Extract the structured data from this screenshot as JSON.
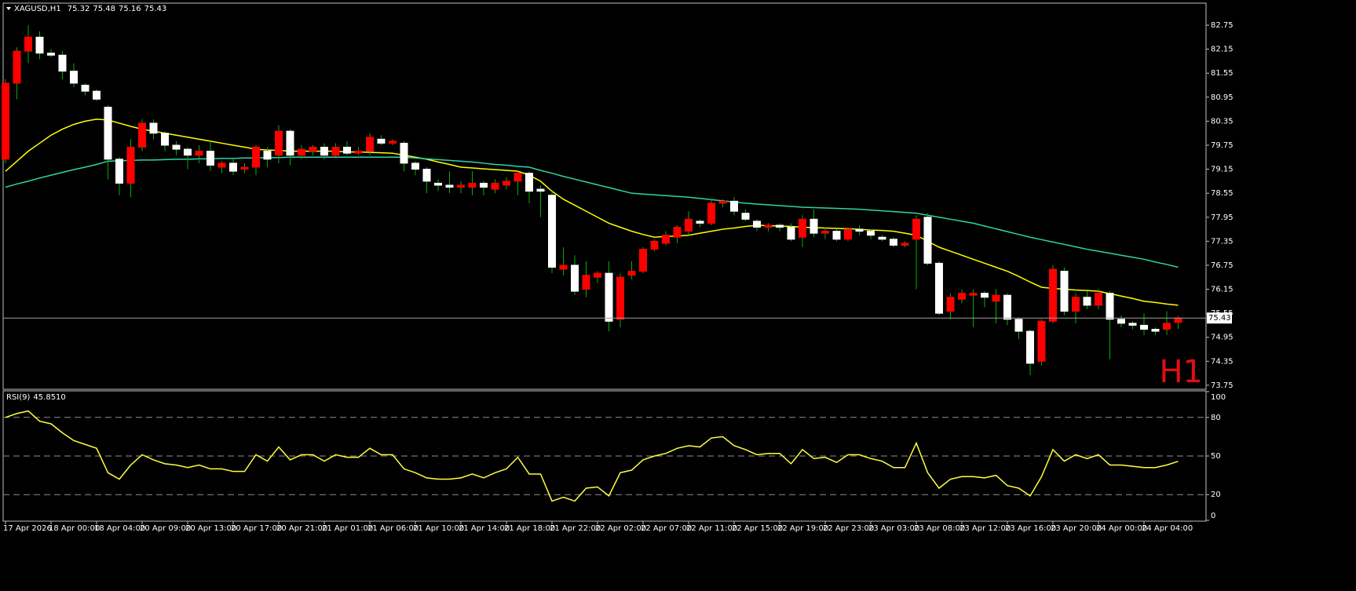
{
  "chart_data": {
    "type": "candlestick",
    "title": "XAGUSD,H1",
    "timeframe": "H1",
    "categories": [
      "17 Apr 2026",
      null,
      null,
      null,
      "18 Apr 00:00",
      null,
      null,
      null,
      "18 Apr 04:00",
      null,
      null,
      null,
      "20 Apr 09:00",
      null,
      null,
      null,
      "20 Apr 13:00",
      null,
      null,
      null,
      "20 Apr 17:00",
      null,
      null,
      null,
      "20 Apr 21:00",
      null,
      null,
      null,
      "21 Apr 01:00",
      null,
      null,
      null,
      "21 Apr 06:00",
      null,
      null,
      null,
      "21 Apr 10:00",
      null,
      null,
      null,
      "21 Apr 14:00",
      null,
      null,
      null,
      "21 Apr 18:00",
      null,
      null,
      null,
      "21 Apr 22:00",
      null,
      null,
      null,
      "22 Apr 02:00",
      null,
      null,
      null,
      "22 Apr 07:00",
      null,
      null,
      null,
      "22 Apr 11:00",
      null,
      null,
      null,
      "22 Apr 15:00",
      null,
      null,
      null,
      "22 Apr 19:00",
      null,
      null,
      null,
      "22 Apr 23:00",
      null,
      null,
      null,
      "23 Apr 03:00",
      null,
      null,
      null,
      "23 Apr 08:00",
      null,
      null,
      null,
      "23 Apr 12:00",
      null,
      null,
      null,
      "23 Apr 16:00",
      null,
      null,
      null,
      "23 Apr 20:00",
      null,
      null,
      null,
      "24 Apr 00:00",
      null,
      null,
      null,
      "24 Apr 04:00",
      null,
      null,
      null
    ],
    "open": [
      79.4,
      81.3,
      82.1,
      82.45,
      82.05,
      82.0,
      81.6,
      81.25,
      81.1,
      80.7,
      79.4,
      78.8,
      79.7,
      80.3,
      80.05,
      79.75,
      79.65,
      79.5,
      79.6,
      79.2,
      79.3,
      79.15,
      79.2,
      79.6,
      79.5,
      80.1,
      79.5,
      79.6,
      79.7,
      79.5,
      79.7,
      79.55,
      79.6,
      79.9,
      79.8,
      79.8,
      79.3,
      79.15,
      78.8,
      78.75,
      78.7,
      78.7,
      78.8,
      78.65,
      78.75,
      78.85,
      79.05,
      78.65,
      78.5,
      76.65,
      76.75,
      76.15,
      76.45,
      76.55,
      75.4,
      76.5,
      76.6,
      77.15,
      77.3,
      77.45,
      77.6,
      77.85,
      77.8,
      78.3,
      78.35,
      78.05,
      77.85,
      77.7,
      77.75,
      77.7,
      77.45,
      77.9,
      77.55,
      77.6,
      77.4,
      77.65,
      77.6,
      77.45,
      77.4,
      77.25,
      77.4,
      77.95,
      76.8,
      75.6,
      75.9,
      76.0,
      76.05,
      75.85,
      76.0,
      75.4,
      75.1,
      74.35,
      75.35,
      76.6,
      75.6,
      75.95,
      75.75,
      76.05,
      75.4,
      75.3,
      75.25,
      75.15,
      75.15,
      75.32
    ],
    "high": [
      81.4,
      82.2,
      82.75,
      82.6,
      82.15,
      82.1,
      81.8,
      81.3,
      81.15,
      80.75,
      79.45,
      79.9,
      80.4,
      80.4,
      80.1,
      79.85,
      79.7,
      79.75,
      79.85,
      79.35,
      79.4,
      79.3,
      79.75,
      79.7,
      80.25,
      80.15,
      79.75,
      79.75,
      79.8,
      79.8,
      79.85,
      79.7,
      80.05,
      80.0,
      79.9,
      79.85,
      79.35,
      79.2,
      78.9,
      79.1,
      78.85,
      79.1,
      78.85,
      78.9,
      78.95,
      79.1,
      79.1,
      78.75,
      78.6,
      77.2,
      77.0,
      76.85,
      76.6,
      76.85,
      76.55,
      76.85,
      77.2,
      77.4,
      77.6,
      77.75,
      78.1,
      77.9,
      78.4,
      78.4,
      78.45,
      78.15,
      77.9,
      77.8,
      77.8,
      77.8,
      78.0,
      78.15,
      77.7,
      77.65,
      77.7,
      77.75,
      77.65,
      77.5,
      77.45,
      77.35,
      78.0,
      78.05,
      76.85,
      76.05,
      76.15,
      76.15,
      76.1,
      76.15,
      76.05,
      75.45,
      75.15,
      75.4,
      76.75,
      76.7,
      76.05,
      76.1,
      76.15,
      76.1,
      75.5,
      75.35,
      75.55,
      75.2,
      75.6,
      75.48
    ],
    "low": [
      79.3,
      80.9,
      81.8,
      81.9,
      81.95,
      81.4,
      81.2,
      81.0,
      80.85,
      78.9,
      78.5,
      78.45,
      79.6,
      79.9,
      79.6,
      79.5,
      79.15,
      79.3,
      79.1,
      79.05,
      79.0,
      79.05,
      79.0,
      79.2,
      79.3,
      79.25,
      79.4,
      79.5,
      79.4,
      79.45,
      79.5,
      79.5,
      79.5,
      79.75,
      79.75,
      79.1,
      79.0,
      78.55,
      78.6,
      78.55,
      78.55,
      78.5,
      78.5,
      78.55,
      78.65,
      78.5,
      78.3,
      77.95,
      76.55,
      76.5,
      76.0,
      75.95,
      76.3,
      75.1,
      75.2,
      76.4,
      76.55,
      77.1,
      77.25,
      77.3,
      77.5,
      77.7,
      77.75,
      78.2,
      78.0,
      77.85,
      77.6,
      77.6,
      77.6,
      77.35,
      77.2,
      77.45,
      77.4,
      77.35,
      77.35,
      77.5,
      77.4,
      77.35,
      77.2,
      77.2,
      76.15,
      76.75,
      75.5,
      75.4,
      75.8,
      75.2,
      75.7,
      75.3,
      75.25,
      74.9,
      74.0,
      74.25,
      75.3,
      75.5,
      75.3,
      75.65,
      75.65,
      74.4,
      75.2,
      75.15,
      75.0,
      75.0,
      75.0,
      75.16
    ],
    "close": [
      81.3,
      82.1,
      82.45,
      82.05,
      82.0,
      81.6,
      81.3,
      81.1,
      80.9,
      79.4,
      78.8,
      79.7,
      80.3,
      80.05,
      79.75,
      79.65,
      79.5,
      79.6,
      79.25,
      79.3,
      79.1,
      79.2,
      79.7,
      79.4,
      80.1,
      79.5,
      79.65,
      79.7,
      79.5,
      79.7,
      79.55,
      79.6,
      79.95,
      79.8,
      79.85,
      79.3,
      79.15,
      78.85,
      78.75,
      78.7,
      78.75,
      78.8,
      78.7,
      78.8,
      78.85,
      79.05,
      78.6,
      78.6,
      76.7,
      76.75,
      76.1,
      76.5,
      76.55,
      75.35,
      76.45,
      76.6,
      77.15,
      77.35,
      77.5,
      77.7,
      77.9,
      77.8,
      78.3,
      78.35,
      78.1,
      77.9,
      77.7,
      77.75,
      77.7,
      77.4,
      77.9,
      77.55,
      77.6,
      77.4,
      77.65,
      77.6,
      77.5,
      77.4,
      77.25,
      77.3,
      77.9,
      76.8,
      75.55,
      75.95,
      76.05,
      76.05,
      75.95,
      76.0,
      75.4,
      75.1,
      74.3,
      75.35,
      76.65,
      75.6,
      75.95,
      75.75,
      76.05,
      75.4,
      75.3,
      75.25,
      75.15,
      75.1,
      75.3,
      75.43
    ],
    "up_color": "#ff0000",
    "down_color": "#ffffff",
    "wick_color": "#00b000",
    "ylim": [
      73.65,
      83.3
    ],
    "yticks": [
      82.75,
      82.15,
      81.55,
      80.95,
      80.35,
      79.75,
      79.15,
      78.55,
      77.95,
      77.35,
      76.75,
      76.15,
      75.55,
      74.95,
      74.35,
      73.75
    ],
    "current_price_line": true,
    "overlays": [
      {
        "color": "#ffff00",
        "values": [
          79.1,
          79.35,
          79.6,
          79.8,
          80.0,
          80.15,
          80.27,
          80.35,
          80.4,
          80.38,
          80.3,
          80.22,
          80.15,
          80.1,
          80.05,
          80.0,
          79.95,
          79.9,
          79.85,
          79.8,
          79.75,
          79.7,
          79.65,
          79.63,
          79.62,
          79.6,
          79.6,
          79.6,
          79.6,
          79.6,
          79.58,
          79.58,
          79.57,
          79.56,
          79.55,
          79.5,
          79.45,
          79.4,
          79.33,
          79.27,
          79.2,
          79.18,
          79.16,
          79.14,
          79.12,
          79.1,
          79.0,
          78.85,
          78.6,
          78.4,
          78.25,
          78.1,
          77.95,
          77.8,
          77.7,
          77.6,
          77.52,
          77.45,
          77.47,
          77.48,
          77.5,
          77.55,
          77.6,
          77.65,
          77.68,
          77.72,
          77.75,
          77.74,
          77.73,
          77.72,
          77.7,
          77.69,
          77.68,
          77.67,
          77.66,
          77.65,
          77.63,
          77.62,
          77.6,
          77.55,
          77.5,
          77.35,
          77.2,
          77.1,
          77.0,
          76.9,
          76.8,
          76.7,
          76.6,
          76.47,
          76.33,
          76.2,
          76.17,
          76.15,
          76.13,
          76.12,
          76.1,
          76.04,
          75.98,
          75.92,
          75.85,
          75.82,
          75.78,
          75.75
        ]
      },
      {
        "color": "#2fd3aa",
        "values": [
          78.7,
          78.78,
          78.85,
          78.93,
          79.0,
          79.07,
          79.14,
          79.2,
          79.27,
          79.35,
          79.36,
          79.37,
          79.38,
          79.38,
          79.39,
          79.4,
          79.4,
          79.41,
          79.41,
          79.42,
          79.42,
          79.43,
          79.43,
          79.44,
          79.44,
          79.45,
          79.45,
          79.45,
          79.45,
          79.45,
          79.45,
          79.45,
          79.45,
          79.45,
          79.45,
          79.45,
          79.43,
          79.41,
          79.39,
          79.37,
          79.35,
          79.33,
          79.3,
          79.27,
          79.25,
          79.22,
          79.2,
          79.12,
          79.05,
          78.97,
          78.9,
          78.83,
          78.76,
          78.69,
          78.62,
          78.55,
          78.53,
          78.51,
          78.49,
          78.47,
          78.45,
          78.42,
          78.39,
          78.36,
          78.33,
          78.3,
          78.28,
          78.26,
          78.24,
          78.22,
          78.2,
          78.19,
          78.18,
          78.17,
          78.16,
          78.15,
          78.13,
          78.11,
          78.09,
          78.07,
          78.05,
          78.0,
          77.95,
          77.9,
          77.85,
          77.8,
          77.73,
          77.66,
          77.59,
          77.52,
          77.45,
          77.39,
          77.33,
          77.27,
          77.21,
          77.15,
          77.1,
          77.05,
          77.0,
          76.95,
          76.9,
          76.83,
          76.77,
          76.7
        ]
      }
    ],
    "indicator": {
      "type": "line",
      "name": "RSI(9)",
      "current_value_label": "45.8510",
      "color": "#ffff40",
      "values": [
        80,
        83,
        85,
        77,
        75,
        68,
        62,
        59,
        56,
        37,
        32,
        43,
        51,
        47,
        44,
        43,
        41,
        43,
        40,
        40,
        38,
        38,
        51,
        46,
        57,
        47,
        51,
        51,
        46,
        51,
        49,
        49,
        56,
        51,
        51,
        40,
        37,
        33,
        32,
        32,
        33,
        36,
        33,
        37,
        40,
        49,
        36,
        36,
        15,
        18,
        15,
        25,
        26,
        19,
        37,
        39,
        47,
        50,
        52,
        56,
        58,
        57,
        64,
        65,
        58,
        55,
        51,
        52,
        52,
        44,
        55,
        48,
        49,
        45,
        51,
        51,
        48,
        46,
        41,
        41,
        60,
        37,
        25,
        32,
        34,
        34,
        33,
        35,
        27,
        25,
        19,
        34,
        55,
        46,
        51,
        48,
        51,
        43,
        43,
        42,
        41,
        41,
        43,
        45.851
      ],
      "ylim": [
        0,
        100
      ],
      "yticks": [
        0,
        20,
        50,
        80,
        100
      ],
      "levels": [
        20,
        50,
        80
      ]
    }
  }
}
